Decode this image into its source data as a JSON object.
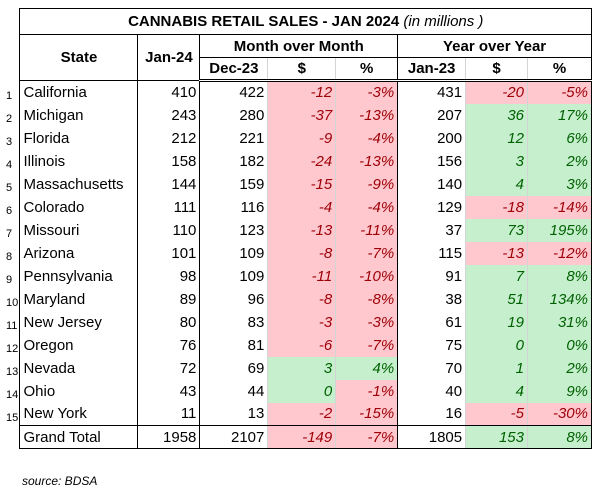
{
  "title": {
    "main": "CANNABIS RETAIL SALES - JAN 2024",
    "unit": "(in millions )"
  },
  "headers": {
    "state": "State",
    "jan24": "Jan-24",
    "mom_group": "Month over Month",
    "yoy_group": "Year over Year",
    "dec23": "Dec-23",
    "dollar": "$",
    "pct": "%",
    "jan23": "Jan-23",
    "dollar2": "$",
    "pct2": "%"
  },
  "rows": [
    {
      "n": "1",
      "state": "California",
      "jan24": "410",
      "dec23": "422",
      "mom_d": "-12",
      "mom_p": "-3%",
      "jan23": "431",
      "yoy_d": "-20",
      "yoy_p": "-5%"
    },
    {
      "n": "2",
      "state": "Michigan",
      "jan24": "243",
      "dec23": "280",
      "mom_d": "-37",
      "mom_p": "-13%",
      "jan23": "207",
      "yoy_d": "36",
      "yoy_p": "17%"
    },
    {
      "n": "3",
      "state": "Florida",
      "jan24": "212",
      "dec23": "221",
      "mom_d": "-9",
      "mom_p": "-4%",
      "jan23": "200",
      "yoy_d": "12",
      "yoy_p": "6%"
    },
    {
      "n": "4",
      "state": "Illinois",
      "jan24": "158",
      "dec23": "182",
      "mom_d": "-24",
      "mom_p": "-13%",
      "jan23": "156",
      "yoy_d": "3",
      "yoy_p": "2%"
    },
    {
      "n": "5",
      "state": "Massachusetts",
      "jan24": "144",
      "dec23": "159",
      "mom_d": "-15",
      "mom_p": "-9%",
      "jan23": "140",
      "yoy_d": "4",
      "yoy_p": "3%"
    },
    {
      "n": "6",
      "state": "Colorado",
      "jan24": "111",
      "dec23": "116",
      "mom_d": "-4",
      "mom_p": "-4%",
      "jan23": "129",
      "yoy_d": "-18",
      "yoy_p": "-14%"
    },
    {
      "n": "7",
      "state": "Missouri",
      "jan24": "110",
      "dec23": "123",
      "mom_d": "-13",
      "mom_p": "-11%",
      "jan23": "37",
      "yoy_d": "73",
      "yoy_p": "195%"
    },
    {
      "n": "8",
      "state": "Arizona",
      "jan24": "101",
      "dec23": "109",
      "mom_d": "-8",
      "mom_p": "-7%",
      "jan23": "115",
      "yoy_d": "-13",
      "yoy_p": "-12%"
    },
    {
      "n": "9",
      "state": "Pennsylvania",
      "jan24": "98",
      "dec23": "109",
      "mom_d": "-11",
      "mom_p": "-10%",
      "jan23": "91",
      "yoy_d": "7",
      "yoy_p": "8%"
    },
    {
      "n": "10",
      "state": "Maryland",
      "jan24": "89",
      "dec23": "96",
      "mom_d": "-8",
      "mom_p": "-8%",
      "jan23": "38",
      "yoy_d": "51",
      "yoy_p": "134%"
    },
    {
      "n": "11",
      "state": "New Jersey",
      "jan24": "80",
      "dec23": "83",
      "mom_d": "-3",
      "mom_p": "-3%",
      "jan23": "61",
      "yoy_d": "19",
      "yoy_p": "31%"
    },
    {
      "n": "12",
      "state": "Oregon",
      "jan24": "76",
      "dec23": "81",
      "mom_d": "-6",
      "mom_p": "-7%",
      "jan23": "75",
      "yoy_d": "0",
      "yoy_p": "0%"
    },
    {
      "n": "13",
      "state": "Nevada",
      "jan24": "72",
      "dec23": "69",
      "mom_d": "3",
      "mom_p": "4%",
      "jan23": "70",
      "yoy_d": "1",
      "yoy_p": "2%"
    },
    {
      "n": "14",
      "state": "Ohio",
      "jan24": "43",
      "dec23": "44",
      "mom_d": "0",
      "mom_p": "-1%",
      "jan23": "40",
      "yoy_d": "4",
      "yoy_p": "9%"
    },
    {
      "n": "15",
      "state": "New York",
      "jan24": "11",
      "dec23": "13",
      "mom_d": "-2",
      "mom_p": "-15%",
      "jan23": "16",
      "yoy_d": "-5",
      "yoy_p": "-30%"
    }
  ],
  "total": {
    "state": "Grand Total",
    "jan24": "1958",
    "dec23": "2107",
    "mom_d": "-149",
    "mom_p": "-7%",
    "jan23": "1805",
    "yoy_d": "153",
    "yoy_p": "8%"
  },
  "source": "source: BDSA",
  "colors": {
    "neg_fill": "#ffc7ce",
    "neg_text": "#9c0006",
    "pos_fill": "#c6efce",
    "pos_text": "#006100"
  }
}
